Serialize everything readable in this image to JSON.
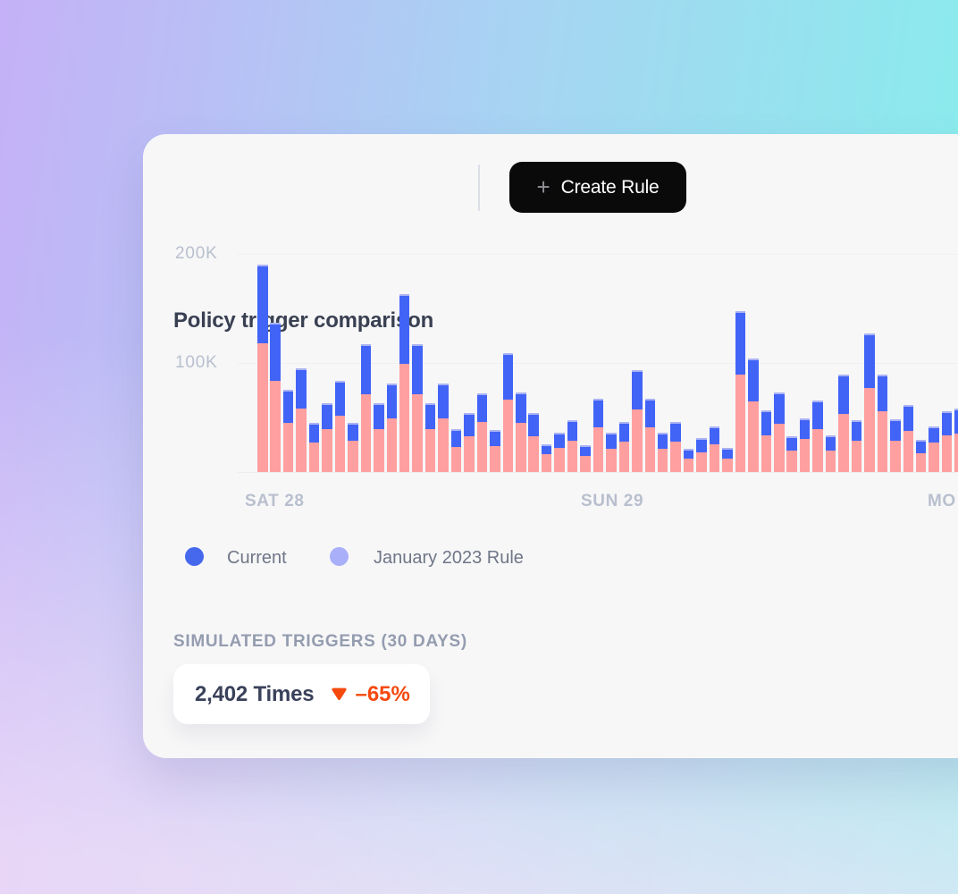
{
  "header": {
    "title": "Policy trigger comparison",
    "create_rule": {
      "label": "Create Rule",
      "plus_icon": "+"
    }
  },
  "chart_data": {
    "type": "bar",
    "stacked": true,
    "title": "Policy trigger comparison",
    "units": "thousands of triggers",
    "grid": true,
    "legend_position": "bottom-left",
    "y_axis": {
      "max_k": 205,
      "ticks": [
        {
          "label": "200K",
          "value_k": 200
        },
        {
          "label": "100K",
          "value_k": 100
        }
      ]
    },
    "x_axis": {
      "labels": [
        "SAT 28",
        "SUN 29",
        "MO"
      ]
    },
    "series": [
      {
        "name": "January 2023 Rule",
        "segment": "bottom",
        "color": "#FF9FA0",
        "values_k": [
          118,
          84,
          45,
          58,
          27,
          39,
          52,
          29,
          71,
          39,
          49,
          99,
          71,
          39,
          49,
          23,
          33,
          46,
          24,
          66,
          45,
          33,
          16,
          22,
          29,
          15,
          41,
          21,
          28,
          57,
          41,
          21,
          28,
          12,
          18,
          25,
          12,
          89,
          65,
          34,
          44,
          20,
          30,
          39,
          20,
          53,
          29,
          77,
          56,
          29,
          38,
          17,
          27,
          34,
          35
        ]
      },
      {
        "name": "Current",
        "segment": "top",
        "color": "#4164F7",
        "cap_color": "#ABB3F3",
        "values_k": [
          72,
          53,
          30,
          37,
          18,
          24,
          32,
          16,
          46,
          24,
          32,
          64,
          46,
          24,
          32,
          16,
          21,
          26,
          15,
          43,
          28,
          21,
          9,
          14,
          19,
          10,
          26,
          15,
          18,
          36,
          26,
          15,
          18,
          9,
          13,
          16,
          10,
          58,
          39,
          23,
          29,
          13,
          19,
          26,
          14,
          36,
          19,
          50,
          34,
          20,
          24,
          12,
          15,
          22,
          23
        ]
      }
    ]
  },
  "legend": {
    "items": [
      {
        "label": "Current",
        "dot_color": "#4668EC"
      },
      {
        "label": "January 2023 Rule",
        "dot_color": "#A9AFF9"
      }
    ]
  },
  "stats": {
    "heading": "SIMULATED TRIGGERS (30 DAYS)",
    "value": "2,402 Times",
    "delta": "–65%",
    "delta_direction": "down",
    "delta_color": "#F5490E"
  }
}
